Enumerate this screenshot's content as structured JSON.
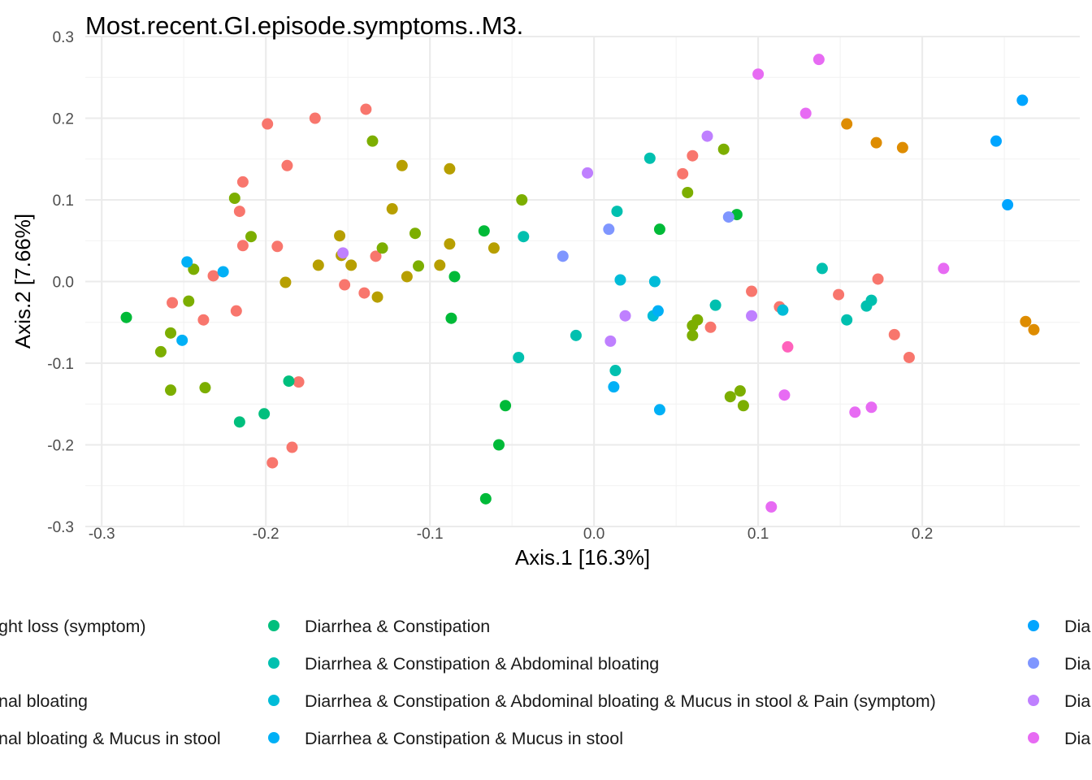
{
  "chart_data": {
    "type": "scatter",
    "title": "Most.recent.GI.episode.symptoms..M3.",
    "xlabel": "Axis.1 [16.3%]",
    "ylabel": "Axis.2 [7.66%]",
    "xlim": [
      -0.31,
      0.296
    ],
    "ylim": [
      -0.3,
      0.3
    ],
    "xticks": [
      -0.3,
      -0.2,
      -0.1,
      0.0,
      0.1,
      0.2
    ],
    "xtick_labels": [
      "-0.3",
      "-0.2",
      "-0.1",
      "0.0",
      "0.1",
      "0.2"
    ],
    "yticks": [
      -0.3,
      -0.2,
      -0.1,
      0.0,
      0.1,
      0.2,
      0.3
    ],
    "ytick_labels": [
      "-0.3",
      "-0.2",
      "-0.1",
      "0.0",
      "0.1",
      "0.2",
      "0.3"
    ],
    "grid": true,
    "legend_position": "bottom",
    "legend_columns": [
      [
        "ght loss (symptom)",
        "",
        "nal bloating",
        "nal bloating & Mucus in stool"
      ],
      [
        "Diarrhea & Constipation",
        "Diarrhea & Constipation & Abdominal bloating",
        "Diarrhea & Constipation & Abdominal bloating & Mucus in stool & Pain (symptom)",
        "Diarrhea & Constipation & Mucus in stool"
      ],
      [
        "Dia",
        "Dia",
        "Dia",
        "Dia"
      ]
    ],
    "legend_column_colors": [
      [
        "",
        "",
        "",
        ""
      ],
      [
        "#00BF7D",
        "#00C0AF",
        "#00BCD8",
        "#00B0F6"
      ],
      [
        "#00A5FF",
        "#7F96FF",
        "#BF80FF",
        "#E76BF3"
      ]
    ],
    "series": [
      {
        "color": "#F8766D",
        "points": [
          [
            -0.199,
            0.193
          ],
          [
            -0.17,
            0.2
          ],
          [
            -0.139,
            0.211
          ],
          [
            -0.187,
            0.142
          ],
          [
            -0.214,
            0.122
          ],
          [
            -0.216,
            0.086
          ],
          [
            -0.214,
            0.044
          ],
          [
            -0.193,
            0.043
          ],
          [
            -0.232,
            0.007
          ],
          [
            -0.257,
            -0.026
          ],
          [
            -0.238,
            -0.047
          ],
          [
            -0.218,
            -0.036
          ],
          [
            -0.152,
            -0.004
          ],
          [
            -0.14,
            -0.014
          ],
          [
            -0.133,
            0.031
          ],
          [
            -0.18,
            -0.123
          ],
          [
            -0.184,
            -0.203
          ],
          [
            -0.196,
            -0.222
          ],
          [
            0.06,
            0.154
          ],
          [
            0.054,
            0.132
          ],
          [
            0.071,
            -0.056
          ],
          [
            0.096,
            -0.012
          ],
          [
            0.113,
            -0.031
          ],
          [
            0.149,
            -0.016
          ],
          [
            0.173,
            0.003
          ],
          [
            0.183,
            -0.065
          ],
          [
            0.192,
            -0.093
          ]
        ]
      },
      {
        "color": "#DE8C00",
        "points": [
          [
            0.154,
            0.193
          ],
          [
            0.172,
            0.17
          ],
          [
            0.188,
            0.164
          ],
          [
            0.263,
            -0.049
          ],
          [
            0.268,
            -0.059
          ]
        ]
      },
      {
        "color": "#B79F00",
        "points": [
          [
            -0.117,
            0.142
          ],
          [
            -0.088,
            0.138
          ],
          [
            -0.123,
            0.089
          ],
          [
            -0.155,
            0.056
          ],
          [
            -0.154,
            0.032
          ],
          [
            -0.168,
            0.02
          ],
          [
            -0.148,
            0.02
          ],
          [
            -0.088,
            0.046
          ],
          [
            -0.094,
            0.02
          ],
          [
            -0.061,
            0.041
          ],
          [
            -0.114,
            0.006
          ],
          [
            -0.188,
            -0.001
          ],
          [
            -0.132,
            -0.019
          ]
        ]
      },
      {
        "color": "#7CAE00",
        "points": [
          [
            -0.135,
            0.172
          ],
          [
            -0.219,
            0.102
          ],
          [
            -0.209,
            0.055
          ],
          [
            -0.244,
            0.015
          ],
          [
            -0.247,
            -0.024
          ],
          [
            -0.258,
            -0.063
          ],
          [
            -0.264,
            -0.086
          ],
          [
            -0.258,
            -0.133
          ],
          [
            -0.237,
            -0.13
          ],
          [
            -0.129,
            0.041
          ],
          [
            -0.109,
            0.059
          ],
          [
            -0.107,
            0.019
          ],
          [
            -0.044,
            0.1
          ],
          [
            0.079,
            0.162
          ],
          [
            0.057,
            0.109
          ],
          [
            0.063,
            -0.047
          ],
          [
            0.06,
            -0.054
          ],
          [
            0.06,
            -0.066
          ],
          [
            0.083,
            -0.141
          ],
          [
            0.089,
            -0.134
          ],
          [
            0.091,
            -0.152
          ]
        ]
      },
      {
        "color": "#00BA38",
        "points": [
          [
            -0.285,
            -0.044
          ],
          [
            -0.067,
            0.062
          ],
          [
            -0.085,
            0.006
          ],
          [
            -0.087,
            -0.045
          ],
          [
            -0.054,
            -0.152
          ],
          [
            -0.058,
            -0.2
          ],
          [
            -0.066,
            -0.266
          ],
          [
            0.04,
            0.064
          ],
          [
            0.087,
            0.082
          ]
        ]
      },
      {
        "color": "#00BF7D",
        "points": [
          [
            -0.216,
            -0.172
          ],
          [
            -0.201,
            -0.162
          ],
          [
            -0.186,
            -0.122
          ]
        ]
      },
      {
        "color": "#00C0AF",
        "points": [
          [
            0.034,
            0.151
          ],
          [
            0.014,
            0.086
          ],
          [
            -0.043,
            0.055
          ],
          [
            -0.046,
            -0.093
          ],
          [
            -0.011,
            -0.066
          ],
          [
            0.013,
            -0.109
          ],
          [
            0.074,
            -0.029
          ],
          [
            0.139,
            0.016
          ],
          [
            0.154,
            -0.047
          ],
          [
            0.166,
            -0.03
          ],
          [
            0.169,
            -0.023
          ]
        ]
      },
      {
        "color": "#00BCD8",
        "points": [
          [
            0.016,
            0.002
          ],
          [
            0.037,
            0.0
          ],
          [
            0.036,
            -0.042
          ],
          [
            0.115,
            -0.035
          ]
        ]
      },
      {
        "color": "#00B0F6",
        "points": [
          [
            -0.248,
            0.024
          ],
          [
            -0.226,
            0.012
          ],
          [
            -0.251,
            -0.072
          ],
          [
            0.039,
            -0.036
          ],
          [
            0.012,
            -0.129
          ],
          [
            0.04,
            -0.157
          ]
        ]
      },
      {
        "color": "#00A5FF",
        "points": [
          [
            0.261,
            0.222
          ],
          [
            0.245,
            0.172
          ],
          [
            0.252,
            0.094
          ]
        ]
      },
      {
        "color": "#7F96FF",
        "points": [
          [
            0.009,
            0.064
          ],
          [
            -0.019,
            0.031
          ],
          [
            0.082,
            0.079
          ]
        ]
      },
      {
        "color": "#BF80FF",
        "points": [
          [
            -0.153,
            0.035
          ],
          [
            -0.004,
            0.133
          ],
          [
            0.069,
            0.178
          ],
          [
            0.019,
            -0.042
          ],
          [
            0.01,
            -0.073
          ],
          [
            0.096,
            -0.042
          ]
        ]
      },
      {
        "color": "#E76BF3",
        "points": [
          [
            0.137,
            0.272
          ],
          [
            0.1,
            0.254
          ],
          [
            0.129,
            0.206
          ],
          [
            0.213,
            0.016
          ],
          [
            0.116,
            -0.139
          ],
          [
            0.159,
            -0.16
          ],
          [
            0.169,
            -0.154
          ],
          [
            0.108,
            -0.276
          ]
        ]
      },
      {
        "color": "#FF62BC",
        "points": [
          [
            0.118,
            -0.08
          ]
        ]
      }
    ]
  }
}
